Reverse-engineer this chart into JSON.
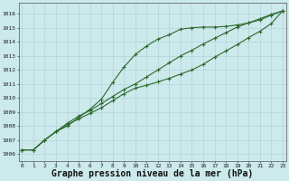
{
  "background_color": "#cce9ec",
  "grid_color": "#aacfd4",
  "line_color": "#2d6a2d",
  "xlabel": "Graphe pression niveau de la mer (hPa)",
  "xlabel_fontsize": 7,
  "ylim": [
    1005.5,
    1016.8
  ],
  "xlim": [
    -0.3,
    23.3
  ],
  "yticks": [
    1006,
    1007,
    1008,
    1009,
    1010,
    1011,
    1012,
    1013,
    1014,
    1015,
    1016
  ],
  "xticks": [
    0,
    1,
    2,
    3,
    4,
    5,
    6,
    7,
    8,
    9,
    10,
    11,
    12,
    13,
    14,
    15,
    16,
    17,
    18,
    19,
    20,
    21,
    22,
    23
  ],
  "series1": [
    1006.3,
    1006.3,
    1007.0,
    1007.6,
    1008.0,
    1008.6,
    1009.2,
    1009.9,
    1011.1,
    1012.2,
    1013.1,
    1013.7,
    1014.2,
    1014.5,
    1014.9,
    1015.0,
    1015.05,
    1015.05,
    1015.1,
    1015.2,
    1015.35,
    1015.55,
    1015.9,
    1016.2
  ],
  "series2": [
    1006.3,
    1006.3,
    1007.0,
    1007.6,
    1008.1,
    1008.5,
    1008.9,
    1009.3,
    1009.8,
    1010.3,
    1010.7,
    1010.9,
    1011.15,
    1011.4,
    1011.7,
    1012.0,
    1012.4,
    1012.9,
    1013.35,
    1013.8,
    1014.3,
    1014.75,
    1015.3,
    1016.2
  ],
  "series3": [
    1006.3,
    1006.3,
    1007.0,
    1007.6,
    1008.2,
    1008.7,
    1009.1,
    1009.6,
    1010.1,
    1010.6,
    1011.0,
    1011.5,
    1012.0,
    1012.5,
    1013.0,
    1013.4,
    1013.85,
    1014.25,
    1014.65,
    1015.05,
    1015.35,
    1015.65,
    1015.95,
    1016.2
  ]
}
